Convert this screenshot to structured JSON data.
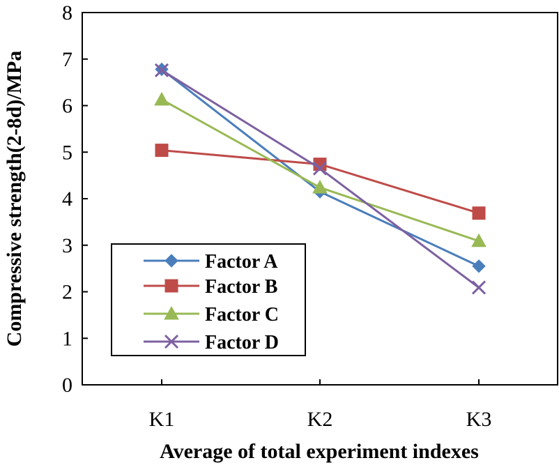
{
  "chart_data": {
    "type": "line",
    "title": "",
    "categories": [
      "K1",
      "K2",
      "K3"
    ],
    "xlabel": "Average of total experiment indexes",
    "ylabel": "Compressive strength(2-8d)/MPa",
    "ylim": [
      0,
      8
    ],
    "yticks": [
      "0",
      "1",
      "2",
      "3",
      "4",
      "5",
      "6",
      "7",
      "8"
    ],
    "grid": false,
    "legend_position": "bottom-left",
    "series": [
      {
        "name": "Factor A",
        "values": [
          6.78,
          4.15,
          2.55
        ],
        "color": "#4a7ebb",
        "marker": "diamond"
      },
      {
        "name": "Factor B",
        "values": [
          5.04,
          4.74,
          3.69
        ],
        "color": "#be4b48",
        "marker": "square"
      },
      {
        "name": "Factor C",
        "values": [
          6.13,
          4.24,
          3.09
        ],
        "color": "#98b954",
        "marker": "triangle"
      },
      {
        "name": "Factor D",
        "values": [
          6.76,
          4.65,
          2.09
        ],
        "color": "#7d60a0",
        "marker": "x"
      }
    ]
  }
}
